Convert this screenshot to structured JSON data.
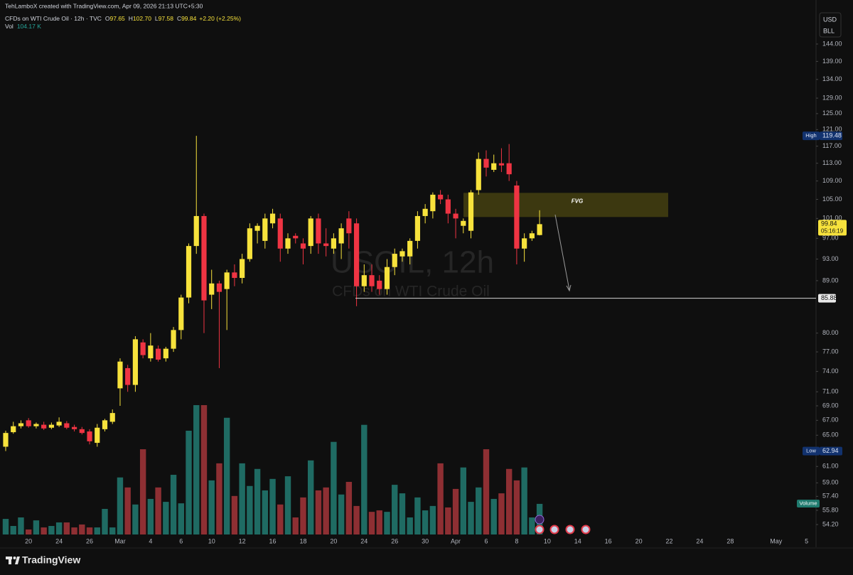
{
  "header": {
    "credit": "TehLamboX created with TradingView.com, Apr 09, 2026 21:13 UTC+5:30"
  },
  "chart_data": {
    "type": "candlestick",
    "legend_title": "CFDs on WTI Crude Oil · 12h · TVC",
    "ohlc_legend": [
      {
        "label": "O",
        "value": "97.65"
      },
      {
        "label": "H",
        "value": "102.70"
      },
      {
        "label": "L",
        "value": "97.58"
      },
      {
        "label": "C",
        "value": "99.84"
      }
    ],
    "change": "+2.20 (+2.25%)",
    "volume_legend": {
      "label": "Vol",
      "value": "104.17 K"
    },
    "watermark": {
      "symbol": "USOIL, 12h",
      "description": "CFDs on WTI Crude Oil"
    },
    "currency": "USD",
    "unit": "BLL",
    "categories": [
      null,
      null,
      null,
      "20",
      null,
      null,
      null,
      "24",
      null,
      null,
      null,
      "26",
      null,
      null,
      null,
      "Mar",
      null,
      null,
      null,
      "4",
      null,
      null,
      null,
      "6",
      null,
      null,
      null,
      "10",
      null,
      null,
      null,
      "12",
      null,
      null,
      null,
      "16",
      null,
      null,
      null,
      "18",
      null,
      null,
      null,
      "20",
      null,
      null,
      null,
      "24",
      null,
      null,
      null,
      "26",
      null,
      null,
      null,
      "30",
      null,
      null,
      null,
      "Apr",
      null,
      null,
      null,
      "6",
      null,
      null,
      null,
      "8",
      null,
      null,
      null,
      "10",
      null,
      null,
      null,
      "14",
      null,
      null,
      null,
      "16",
      null,
      null,
      null,
      "20",
      null,
      null,
      null,
      "22",
      null,
      null,
      null,
      "24",
      null,
      null,
      null,
      "28",
      null,
      null,
      null,
      null,
      null,
      "May",
      null,
      null,
      null,
      "5"
    ],
    "open": [
      63.5,
      65.4,
      66.2,
      67.0,
      66.2,
      66.4,
      66.0,
      66.3,
      66.6,
      66.1,
      65.8,
      65.5,
      64.0,
      65.8,
      66.8,
      71.5,
      74.5,
      72.0,
      78.5,
      76.0,
      77.5,
      76.0,
      77.5,
      80.5,
      86.0,
      95.5,
      101.5,
      86.5,
      88.5,
      87.5,
      90.5,
      89.5,
      93.0,
      98.5,
      96.5,
      100.0,
      101.0,
      95.0,
      97.5,
      96.0,
      95.5,
      101.0,
      96.0,
      95.0,
      96.0,
      101.0,
      100.0,
      88.0,
      90.0,
      89.0,
      87.5,
      91.5,
      93.5,
      93.5,
      96.5,
      101.5,
      102.5,
      106.0,
      105.0,
      102.0,
      99.5,
      98.5,
      107.0,
      114.0,
      111.5,
      113.0,
      113.0,
      108.0,
      95.0,
      97.0,
      97.65,
      null,
      null,
      null,
      null,
      null,
      null,
      null,
      null,
      null,
      null,
      null,
      null,
      null,
      null,
      null,
      null,
      null,
      null,
      null,
      null,
      null,
      null,
      null,
      null,
      null,
      null,
      null,
      null,
      null,
      null,
      null,
      null,
      null,
      null,
      null
    ],
    "high": [
      65.6,
      66.8,
      67.0,
      67.3,
      66.7,
      66.8,
      66.7,
      67.4,
      66.9,
      66.4,
      66.1,
      65.8,
      66.5,
      67.2,
      68.5,
      76.0,
      75.0,
      79.5,
      79.0,
      80.0,
      78.0,
      77.8,
      81.0,
      86.5,
      96.0,
      119.48,
      102.0,
      91.0,
      89.0,
      91.0,
      92.0,
      94.0,
      100.0,
      100.0,
      102.0,
      103.0,
      102.0,
      98.0,
      98.0,
      97.0,
      101.5,
      102.0,
      99.0,
      98.0,
      100.0,
      102.5,
      101.0,
      92.0,
      92.0,
      90.0,
      93.0,
      95.0,
      95.0,
      97.0,
      102.5,
      104.0,
      106.5,
      107.0,
      106.0,
      103.0,
      101.0,
      107.0,
      115.5,
      116.0,
      115.0,
      116.5,
      117.5,
      109.0,
      98.0,
      98.5,
      102.7,
      null,
      null,
      null,
      null,
      null,
      null,
      null,
      null,
      null,
      null,
      null,
      null,
      null,
      null,
      null,
      null,
      null,
      null,
      null,
      null,
      null,
      null,
      null,
      null,
      null,
      null,
      null,
      null,
      null,
      null,
      null,
      null,
      null,
      null,
      null
    ],
    "low": [
      62.94,
      65.2,
      65.9,
      66.0,
      65.9,
      65.7,
      65.8,
      66.1,
      65.8,
      65.5,
      65.1,
      63.8,
      63.5,
      65.5,
      66.5,
      69.0,
      71.0,
      71.0,
      76.0,
      75.5,
      75.5,
      75.5,
      77.0,
      79.0,
      85.0,
      94.0,
      80.0,
      84.0,
      74.5,
      80.5,
      88.0,
      88.5,
      92.5,
      96.0,
      95.0,
      99.0,
      92.5,
      94.0,
      96.0,
      92.0,
      94.0,
      94.0,
      93.5,
      94.0,
      93.0,
      95.0,
      84.5,
      87.0,
      87.0,
      86.5,
      86.5,
      90.0,
      92.5,
      92.0,
      95.0,
      100.0,
      101.0,
      104.0,
      100.0,
      97.0,
      98.0,
      97.0,
      106.0,
      110.0,
      111.0,
      111.0,
      109.0,
      92.0,
      92.5,
      96.5,
      97.58,
      null,
      null,
      null,
      null,
      null,
      null,
      null,
      null,
      null,
      null,
      null,
      null,
      null,
      null,
      null,
      null,
      null,
      null,
      null,
      null,
      null,
      null,
      null,
      null,
      null,
      null,
      null,
      null,
      null,
      null,
      null,
      null,
      null,
      null,
      null
    ],
    "close": [
      65.3,
      66.2,
      66.6,
      66.2,
      66.5,
      65.9,
      66.4,
      66.8,
      66.0,
      65.8,
      65.3,
      64.2,
      66.0,
      67.0,
      68.0,
      75.5,
      72.0,
      79.0,
      76.5,
      78.0,
      75.8,
      77.5,
      80.5,
      86.0,
      95.5,
      101.5,
      85.5,
      88.5,
      87.0,
      90.5,
      89.5,
      93.0,
      99.0,
      99.5,
      101.0,
      102.0,
      95.0,
      97.0,
      97.0,
      95.0,
      101.0,
      96.0,
      95.5,
      97.0,
      99.0,
      98.0,
      88.0,
      90.0,
      88.0,
      87.5,
      91.5,
      94.0,
      94.5,
      96.5,
      101.5,
      103.0,
      106.0,
      105.0,
      102.0,
      101.0,
      100.5,
      106.5,
      114.0,
      112.0,
      113.0,
      112.5,
      110.5,
      95.0,
      97.0,
      98.0,
      99.84,
      null,
      null,
      null,
      null,
      null,
      null,
      null,
      null,
      null,
      null,
      null,
      null,
      null,
      null,
      null,
      null,
      null,
      null,
      null,
      null,
      null,
      null,
      null,
      null,
      null,
      null,
      null,
      null,
      null,
      null,
      null,
      null,
      null,
      null,
      null
    ],
    "up_color": "#f7e23c",
    "down_color": "#ef3443",
    "log_scale": true,
    "grid": false,
    "ylim": [
      52.13,
      153
    ],
    "yticks": [
      {
        "value": 144,
        "label": "144.00"
      },
      {
        "value": 139,
        "label": "139.00"
      },
      {
        "value": 134,
        "label": "134.00"
      },
      {
        "value": 129,
        "label": "129.00"
      },
      {
        "value": 125,
        "label": "125.00"
      },
      {
        "value": 121,
        "label": "121.00"
      },
      {
        "value": 117,
        "label": "117.00"
      },
      {
        "value": 113,
        "label": "113.00"
      },
      {
        "value": 109,
        "label": "109.00"
      },
      {
        "value": 105,
        "label": "105.00"
      },
      {
        "value": 101,
        "label": "101.00"
      },
      {
        "value": 97,
        "label": "97.00"
      },
      {
        "value": 93,
        "label": "93.00"
      },
      {
        "value": 89,
        "label": "89.00"
      },
      {
        "value": 80,
        "label": "80.00"
      },
      {
        "value": 77,
        "label": "77.00"
      },
      {
        "value": 74,
        "label": "74.00"
      },
      {
        "value": 71,
        "label": "71.00"
      },
      {
        "value": 69,
        "label": "69.00"
      },
      {
        "value": 67,
        "label": "67.00"
      },
      {
        "value": 65,
        "label": "65.00"
      },
      {
        "value": 61,
        "label": "61.00"
      },
      {
        "value": 59,
        "label": "59.00"
      },
      {
        "value": 57.4,
        "label": "57.40"
      },
      {
        "value": 55.8,
        "label": "55.80"
      },
      {
        "value": 54.2,
        "label": "54.20"
      }
    ],
    "volume": {
      "name": "Volume",
      "ylim": [
        0,
        440
      ],
      "up_color": "#1f6b63",
      "down_color": "#8e2f33",
      "values": [
        53,
        29,
        58,
        17,
        48,
        24,
        29,
        41,
        41,
        24,
        34,
        24,
        24,
        87,
        24,
        194,
        160,
        102,
        290,
        121,
        160,
        111,
        203,
        106,
        353,
        440,
        440,
        184,
        242,
        397,
        131,
        242,
        165,
        223,
        150,
        189,
        102,
        198,
        58,
        126,
        252,
        150,
        160,
        315,
        136,
        179,
        97,
        373,
        77,
        82,
        77,
        169,
        140,
        58,
        126,
        82,
        97,
        242,
        92,
        155,
        228,
        111,
        160,
        290,
        121,
        140,
        223,
        184,
        228,
        58,
        104.17,
        null,
        null,
        null,
        null,
        null,
        null,
        null,
        null,
        null,
        null,
        null,
        null,
        null,
        null,
        null,
        null,
        null,
        null,
        null,
        null,
        null,
        null,
        null,
        null,
        null,
        null,
        null,
        null,
        null,
        null,
        null,
        null,
        null,
        null,
        null
      ]
    },
    "price_labels": [
      {
        "label": "High",
        "value": 119.48
      },
      {
        "label": "Low",
        "value": 62.94
      }
    ],
    "last_price": {
      "value": 99.84,
      "countdown": "05:16:19"
    },
    "level_line": {
      "value": 85.88
    },
    "fvg": {
      "label": "FVG",
      "low": 101.3,
      "high": 106.4
    }
  },
  "footer": {
    "brand": "TradingView"
  }
}
